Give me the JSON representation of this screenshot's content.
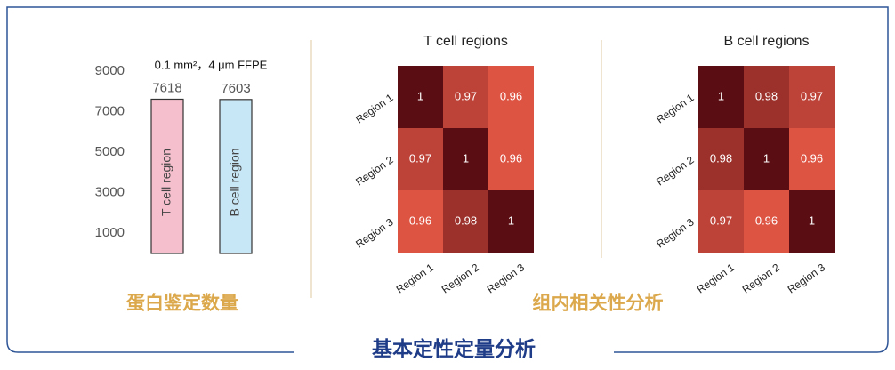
{
  "chart_data": [
    {
      "type": "bar",
      "subtitle": "0.1 mm²，4 μm FFPE",
      "categories": [
        "T cell region",
        "B cell region"
      ],
      "values": [
        7618,
        7603
      ],
      "colors": [
        "#f5bfcd",
        "#c8e7f6"
      ],
      "ylim": [
        0,
        9000
      ],
      "yticks": [
        1000,
        3000,
        5000,
        7000,
        9000
      ]
    },
    {
      "type": "heatmap",
      "title": "T cell regions",
      "x": [
        "Region 1",
        "Region 2",
        "Region 3"
      ],
      "y": [
        "Region 1",
        "Region 2",
        "Region 3"
      ],
      "values": [
        [
          1,
          0.97,
          0.96
        ],
        [
          0.97,
          1,
          0.96
        ],
        [
          0.96,
          0.98,
          1
        ]
      ],
      "colors": [
        "#de5443",
        "#5a0d12"
      ]
    },
    {
      "type": "heatmap",
      "title": "B cell regions",
      "x": [
        "Region 1",
        "Region 2",
        "Region 3"
      ],
      "y": [
        "Region 1",
        "Region 2",
        "Region 3"
      ],
      "values": [
        [
          1,
          0.98,
          0.97
        ],
        [
          0.98,
          1,
          0.96
        ],
        [
          0.97,
          0.96,
          1
        ]
      ],
      "colors": [
        "#de5443",
        "#5a0d12"
      ]
    }
  ],
  "captions": [
    "蛋白鉴定数量",
    "组内相关性分析"
  ],
  "footer_title": "基本定性定量分析"
}
